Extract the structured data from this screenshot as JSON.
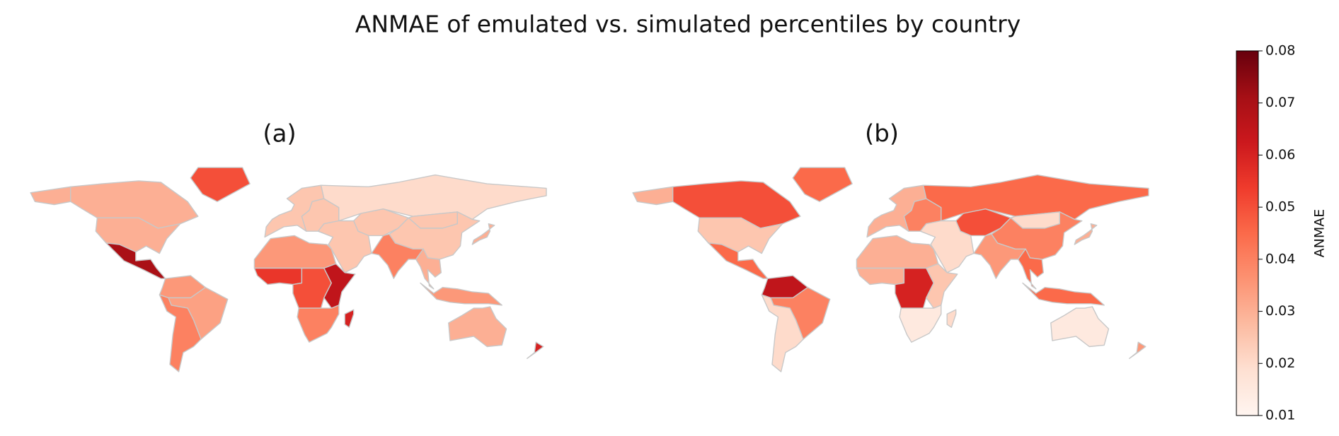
{
  "title": "ANMAE of emulated vs. simulated percentiles by country",
  "colorbar": {
    "label": "ANMAE",
    "lim": [
      0.01,
      0.08
    ],
    "ticks": [
      0.01,
      0.02,
      0.03,
      0.04,
      0.05,
      0.06,
      0.07,
      0.08
    ],
    "colors": [
      "#fff5f0",
      "#fee0d2",
      "#fcbba1",
      "#fc9272",
      "#fb6a4a",
      "#ef3b2c",
      "#cb181d",
      "#a50f15",
      "#67000d"
    ]
  },
  "chart_data": [
    {
      "type": "choropleth",
      "title": "(a)",
      "values": [
        0.03,
        0.03,
        0.03,
        0.07,
        0.05,
        0.035,
        0.033,
        0.04,
        0.025,
        0.025,
        0.02,
        0.025,
        0.025,
        0.025,
        0.04,
        0.025,
        0.035,
        0.055,
        0.05,
        0.065,
        0.04,
        0.06,
        0.03,
        0.035,
        0.03,
        0.06,
        0.03
      ]
    },
    {
      "type": "choropleth",
      "title": "(b)",
      "values": [
        0.03,
        0.05,
        0.025,
        0.045,
        0.045,
        0.065,
        0.04,
        0.02,
        0.03,
        0.04,
        0.045,
        0.05,
        0.02,
        0.04,
        0.035,
        0.02,
        0.03,
        0.03,
        0.06,
        0.025,
        0.015,
        0.02,
        0.045,
        0.045,
        0.015,
        0.035,
        0.03
      ]
    }
  ]
}
